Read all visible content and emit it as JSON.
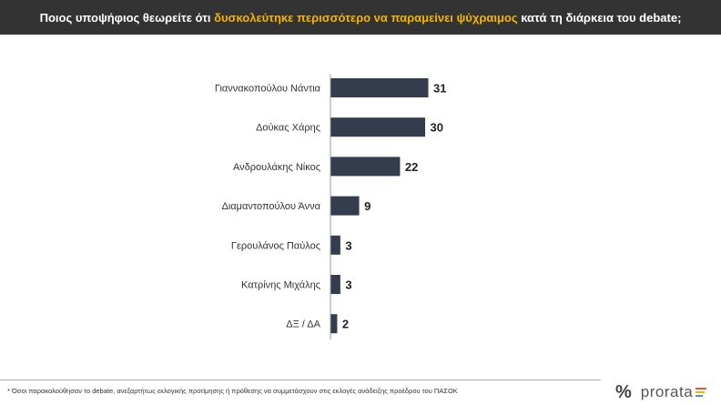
{
  "header": {
    "part1": "Ποιος υποψήφιος θεωρείτε ότι ",
    "highlight": "δυσκολεύτηκε περισσότερο να παραμείνει ψύχραιμος",
    "part2": " κατά τη διάρκεια του debate;"
  },
  "chart_data": {
    "type": "bar",
    "orientation": "horizontal",
    "title": "Ποιος υποψήφιος θεωρείτε ότι δυσκολεύτηκε περισσότερο να παραμείνει ψύχραιμος κατά τη διάρκεια του debate;",
    "categories": [
      "Γιαννακοπούλου Νάντια",
      "Δούκας Χάρης",
      "Ανδρουλάκης Νίκος",
      "Διαμαντοπούλου Άννα",
      "Γερουλάνος Παύλος",
      "Κατρίνης Μιχάλης",
      "ΔΞ / ΔΑ"
    ],
    "values": [
      31,
      30,
      22,
      9,
      3,
      3,
      2
    ],
    "bar_color": "#333d4d",
    "xlim": [
      0,
      31
    ],
    "grid": false
  },
  "footnote": "* Όσοι παρακολούθησαν το debate, ανεξαρτήτως εκλογικής προτίμησης ή πρόθεσης να συμμετάσχουν στις εκλογές ανάδειξης προέδρου του ΠΑΣΟΚ",
  "logo": {
    "symbol": "%",
    "name": "prorata"
  },
  "colors": {
    "header_bg": "#333333",
    "highlight": "#f5b400",
    "bar": "#333d4d"
  }
}
